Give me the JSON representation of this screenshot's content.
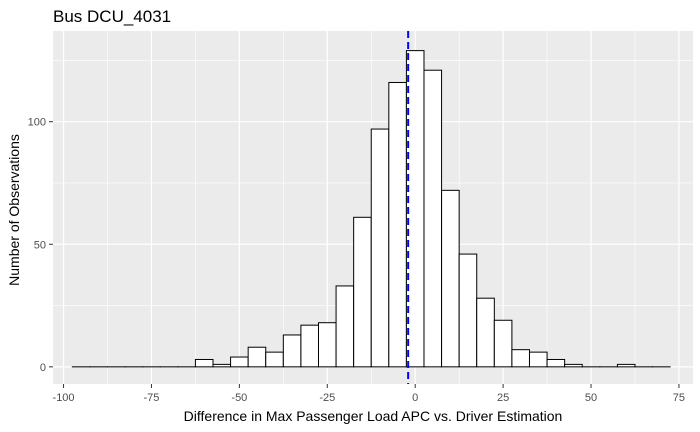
{
  "chart_data": {
    "type": "bar",
    "title": "Bus DCU_4031",
    "xlabel": "Difference in Max Passenger Load APC vs. Driver Estimation",
    "ylabel": "Number of Observations",
    "xlim": [
      -103,
      79
    ],
    "ylim": [
      -7,
      137
    ],
    "x_ticks": [
      -100,
      -75,
      -50,
      -25,
      0,
      25,
      50,
      75
    ],
    "x_tick_labels": [
      "-100",
      "-75",
      "-50",
      "-25",
      "0",
      "25",
      "50",
      "75"
    ],
    "y_ticks": [
      0,
      50,
      100
    ],
    "y_tick_labels": [
      "0",
      "50",
      "100"
    ],
    "bin_width": 5,
    "bin_centers": [
      -95,
      -90,
      -85,
      -80,
      -75,
      -70,
      -65,
      -60,
      -55,
      -50,
      -45,
      -40,
      -35,
      -30,
      -25,
      -20,
      -15,
      -10,
      -5,
      0,
      5,
      10,
      15,
      20,
      25,
      30,
      35,
      40,
      45,
      50,
      55,
      60,
      65,
      70
    ],
    "values": [
      0,
      0,
      0,
      0,
      0,
      0,
      0,
      3,
      1,
      4,
      8,
      6,
      13,
      17,
      18,
      33,
      61,
      97,
      116,
      129,
      121,
      72,
      46,
      28,
      19,
      7,
      6,
      3,
      1,
      0,
      0,
      1,
      0,
      0
    ],
    "vline": {
      "x": -2,
      "color": "#0000ff",
      "style": "dashed"
    },
    "panel_background": "#ebebeb",
    "grid_color": "#ffffff",
    "bar_fill": "#ffffff",
    "bar_stroke": "#000000",
    "grid": true,
    "legend": "none"
  }
}
